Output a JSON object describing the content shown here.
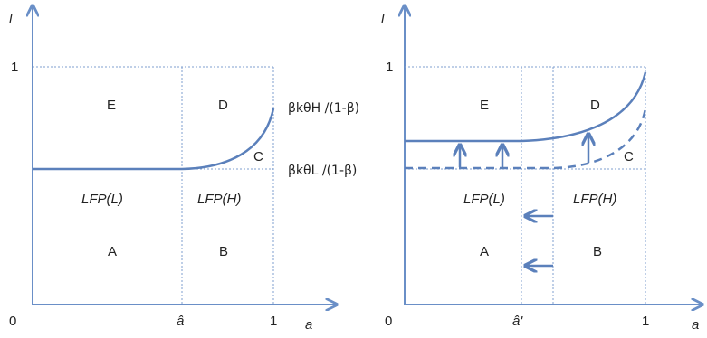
{
  "left_panel": {
    "y_axis_label": "l",
    "x_axis_label": "a",
    "origin_label": "0",
    "y_tick_1": "1",
    "x_tick_ahat": "â",
    "x_tick_1": "1",
    "regions": {
      "E": "E",
      "D": "D",
      "C": "C",
      "A": "A",
      "B": "B"
    },
    "lfp_low": "LFP(L)",
    "lfp_high": "LFP(H)",
    "upper_threshold": "βkθH /(1-β)",
    "lower_threshold": "βkθL /(1-β)"
  },
  "right_panel": {
    "y_axis_label": "l",
    "x_axis_label": "a",
    "origin_label": "0",
    "y_tick_1": "1",
    "x_tick_ahat": "â'",
    "x_tick_1": "1",
    "regions": {
      "E": "E",
      "D": "D",
      "C": "C",
      "A": "A",
      "B": "B"
    },
    "lfp_low": "LFP(L)",
    "lfp_high": "LFP(H)"
  },
  "colors": {
    "line": "#5b80bb",
    "axis": "#6a8fc7",
    "text": "#222222"
  }
}
